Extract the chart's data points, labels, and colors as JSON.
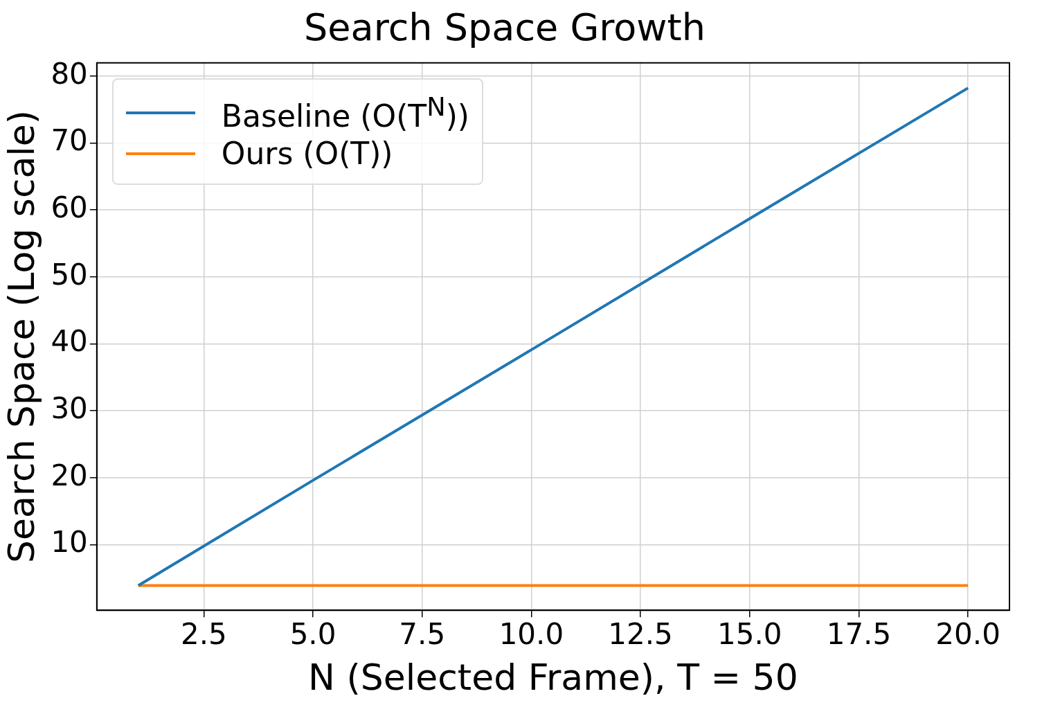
{
  "chart_data": {
    "type": "line",
    "title": "Search Space Growth",
    "xlabel": "N (Selected Frame), T = 50",
    "ylabel": "Search Space (Log scale)",
    "xlim": [
      0.05,
      20.95
    ],
    "ylim": [
      0.2,
      81.96
    ],
    "xticks": [
      {
        "value": 2.5,
        "label": "2.5"
      },
      {
        "value": 5,
        "label": "5.0"
      },
      {
        "value": 7.5,
        "label": "7.5"
      },
      {
        "value": 10,
        "label": "10.0"
      },
      {
        "value": 12.5,
        "label": "12.5"
      },
      {
        "value": 15,
        "label": "15.0"
      },
      {
        "value": 17.5,
        "label": "17.5"
      },
      {
        "value": 20,
        "label": "20.0"
      }
    ],
    "yticks": [
      10,
      20,
      30,
      40,
      50,
      60,
      70,
      80
    ],
    "grid": true,
    "legend": "top left",
    "line_style": "solid",
    "marker": "none",
    "series": [
      {
        "name": "Baseline (O(T$^{N}$))",
        "color": "#1f77b4",
        "x": [
          1,
          5,
          10,
          15,
          20
        ],
        "values": [
          3.9,
          19.6,
          39.1,
          58.7,
          78.2
        ]
      },
      {
        "name": "Ours (O(T))",
        "color": "#ff7f0e",
        "x": [
          1,
          5,
          10,
          15,
          20
        ],
        "values": [
          3.9,
          3.9,
          3.9,
          3.9,
          3.9
        ]
      }
    ]
  }
}
